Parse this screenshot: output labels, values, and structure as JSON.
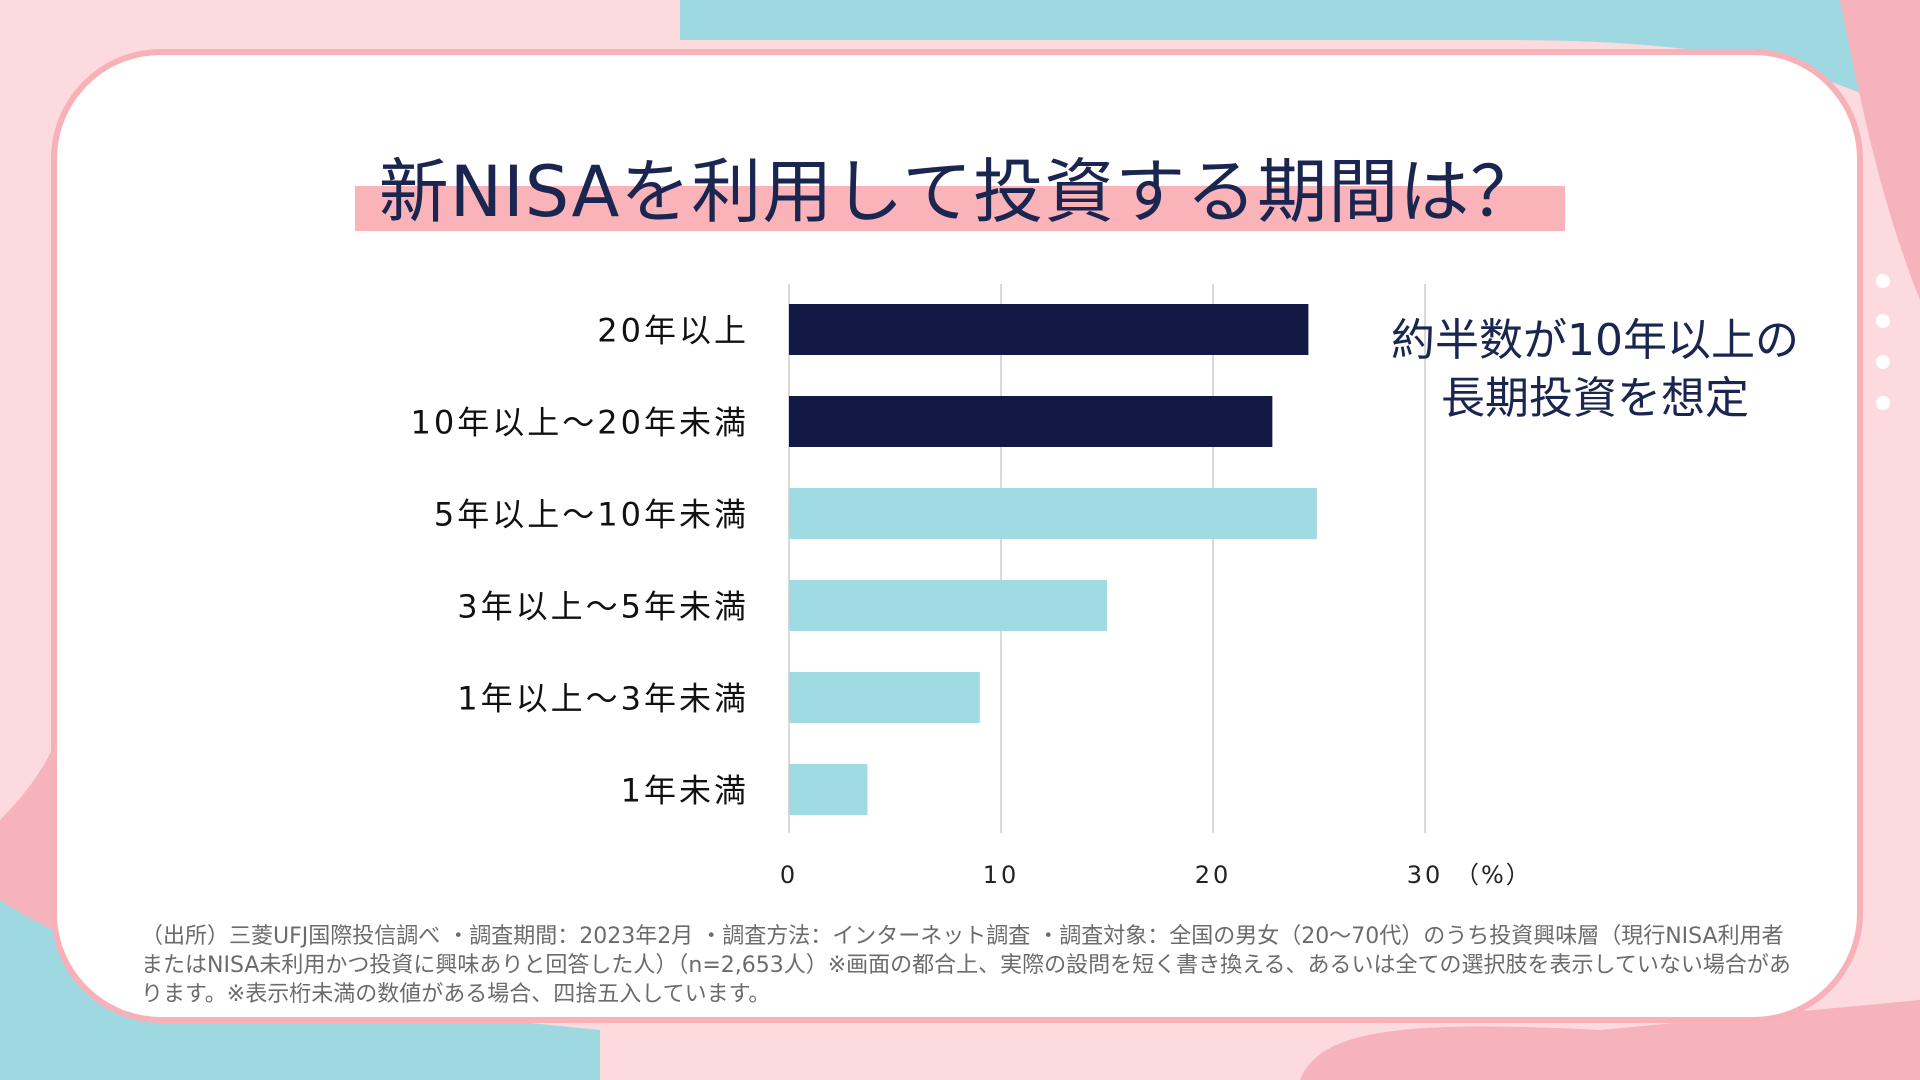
{
  "title": "新NISAを利用して投資する期間は？",
  "annotation": {
    "line1": "約半数が10年以上の",
    "line2": "長期投資を想定"
  },
  "footnote": "（出所）三菱UFJ国際投信調べ ・調査期間：2023年2月 ・調査方法：インターネット調査 ・調査対象：全国の男女（20～70代）のうち投資興味層（現行NISA利用者またはNISA未利用かつ投資に興味ありと回答した人）（n=2,653人）※画面の都合上、実際の設問を短く書き換える、あるいは全ての選択肢を表示していない場合があります。※表示桁未満の数値がある場合、四捨五入しています。",
  "colors": {
    "dark": "#111944",
    "light": "#a0dae3",
    "grid": "#d9d9d9"
  },
  "chart_data": {
    "type": "bar",
    "orientation": "horizontal",
    "title": "新NISAを利用して投資する期間は？",
    "categories": [
      "20年以上",
      "10年以上～20年未満",
      "5年以上～10年未満",
      "3年以上～5年未満",
      "1年以上～3年未満",
      "1年未満"
    ],
    "values": [
      24.5,
      22.8,
      24.9,
      15.0,
      9.0,
      3.7
    ],
    "highlight": [
      true,
      true,
      false,
      false,
      false,
      false
    ],
    "xticks": [
      "0",
      "10",
      "20",
      "30"
    ],
    "xunit": "（%）",
    "xlim": [
      0,
      30
    ],
    "grid": true
  }
}
